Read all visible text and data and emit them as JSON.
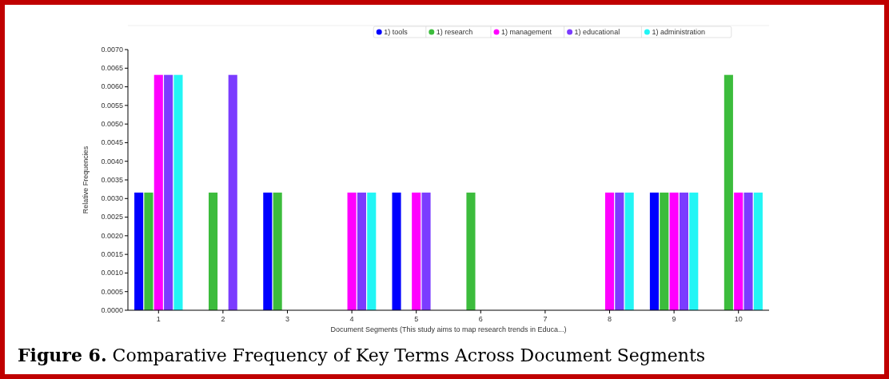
{
  "chart_data": {
    "type": "bar",
    "title": "Figure 6. Comparative Frequency of Key Terms Across Document Segments",
    "xlabel": "Document Segments (This study aims to map research trends in Educa...)",
    "ylabel": "Relative Frequencies",
    "categories": [
      "1",
      "2",
      "3",
      "4",
      "5",
      "6",
      "7",
      "8",
      "9",
      "10"
    ],
    "series": [
      {
        "name": "1) tools",
        "color": "#0000ff",
        "values": [
          0.00316,
          0,
          0.00316,
          0,
          0.00316,
          0,
          0,
          0,
          0.00316,
          0
        ]
      },
      {
        "name": "1) research",
        "color": "#3cbc3c",
        "values": [
          0.00316,
          0.00316,
          0.00316,
          0,
          0,
          0.00316,
          0,
          0,
          0.00316,
          0.00632
        ]
      },
      {
        "name": "1) management",
        "color": "#ff00ff",
        "values": [
          0.00632,
          0,
          0,
          0.00316,
          0.00316,
          0,
          0,
          0.00316,
          0.00316,
          0.00316
        ]
      },
      {
        "name": "1) educational",
        "color": "#7b3cff",
        "values": [
          0.00632,
          0.00632,
          0,
          0.00316,
          0.00316,
          0,
          0,
          0.00316,
          0.00316,
          0.00316
        ]
      },
      {
        "name": "1) administration",
        "color": "#22f5f5",
        "values": [
          0.00632,
          0,
          0,
          0.00316,
          0,
          0,
          0,
          0.00316,
          0.00316,
          0.00316
        ]
      }
    ],
    "ylim": [
      0,
      0.007
    ],
    "yticks": [
      {
        "value": 0,
        "label": "0.0000"
      },
      {
        "value": 0.0005,
        "label": "0.0005"
      },
      {
        "value": 0.001,
        "label": "0.0010"
      },
      {
        "value": 0.0015,
        "label": "0.0015"
      },
      {
        "value": 0.002,
        "label": "0.0020"
      },
      {
        "value": 0.0025,
        "label": "0.0025"
      },
      {
        "value": 0.003,
        "label": "0.0030"
      },
      {
        "value": 0.0035,
        "label": "0.0035"
      },
      {
        "value": 0.004,
        "label": "0.0040"
      },
      {
        "value": 0.0045,
        "label": "0.0045"
      },
      {
        "value": 0.005,
        "label": "0.0050"
      },
      {
        "value": 0.0055,
        "label": "0.0055"
      },
      {
        "value": 0.006,
        "label": "0.0060"
      },
      {
        "value": 0.0065,
        "label": "0.0065"
      },
      {
        "value": 0.007,
        "label": "0.0070"
      }
    ],
    "grid": false,
    "legend": "top"
  }
}
